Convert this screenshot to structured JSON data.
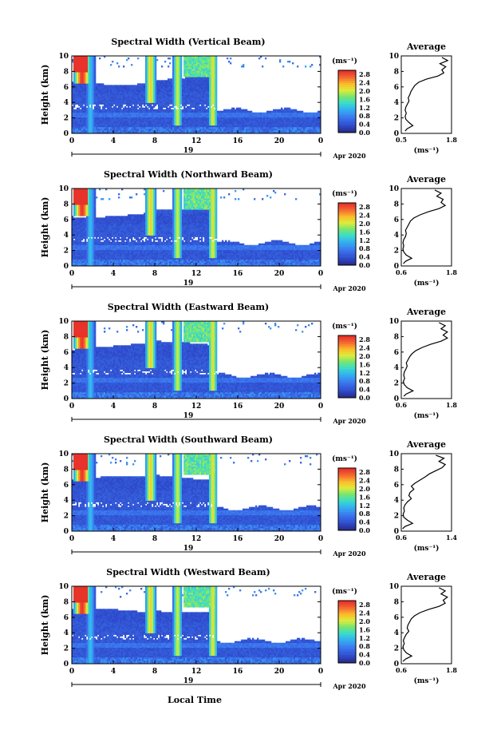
{
  "figure": {
    "xlabel": "Local Time",
    "month_label": "Apr 2020",
    "day_label": "19",
    "avg_title": "Average",
    "unit_label": "(ms⁻¹)",
    "ylabel": "Height (km)"
  },
  "chart_data": [
    {
      "type": "heatmap",
      "title": "Spectral Width (Vertical Beam)",
      "xlabel": "Local Time",
      "ylabel": "Height (km)",
      "x_ticks": [
        "0",
        "4",
        "8",
        "12",
        "16",
        "20",
        "0"
      ],
      "y_ticks": [
        "0",
        "2",
        "4",
        "6",
        "8",
        "10"
      ],
      "xlim": [
        0,
        24
      ],
      "ylim": [
        0,
        10
      ],
      "colorbar": {
        "unit": "(ms⁻¹)",
        "ticks": [
          "0.0",
          "0.4",
          "0.8",
          "1.2",
          "1.6",
          "2.0",
          "2.4",
          "2.8"
        ],
        "range": [
          0,
          3.0
        ]
      },
      "average_profile": {
        "title": "Average",
        "xlabel": "(ms⁻¹)",
        "xlim": [
          0.5,
          1.8
        ],
        "x_ticks": [
          "0.5",
          "1.8"
        ],
        "y_ticks": [
          "0",
          "2",
          "4",
          "6",
          "8",
          "10"
        ],
        "height": [
          0.3,
          0.6,
          1.0,
          1.4,
          1.8,
          2.2,
          2.6,
          3.0,
          3.4,
          3.8,
          4.2,
          4.6,
          5.0,
          5.4,
          5.8,
          6.2,
          6.6,
          7.0,
          7.4,
          7.8,
          8.2,
          8.6,
          9.0,
          9.4,
          9.8
        ],
        "width": [
          0.6,
          0.65,
          0.8,
          0.7,
          0.62,
          0.6,
          0.63,
          0.6,
          0.62,
          0.66,
          0.7,
          0.68,
          0.72,
          0.75,
          0.8,
          0.85,
          0.95,
          1.15,
          1.45,
          1.6,
          1.55,
          1.65,
          1.5,
          1.7,
          1.55
        ]
      }
    },
    {
      "type": "heatmap",
      "title": "Spectral Width (Northward Beam)",
      "xlabel": "Local Time",
      "ylabel": "Height (km)",
      "x_ticks": [
        "0",
        "4",
        "8",
        "12",
        "16",
        "20",
        "0"
      ],
      "y_ticks": [
        "0",
        "2",
        "4",
        "6",
        "8",
        "10"
      ],
      "xlim": [
        0,
        24
      ],
      "ylim": [
        0,
        10
      ],
      "colorbar": {
        "unit": "(ms⁻¹)",
        "ticks": [
          "0.0",
          "0.4",
          "0.8",
          "1.2",
          "1.6",
          "2.0",
          "2.4",
          "2.8"
        ],
        "range": [
          0,
          3.0
        ]
      },
      "average_profile": {
        "title": "Average",
        "xlabel": "(ms⁻¹)",
        "xlim": [
          0.6,
          1.8
        ],
        "x_ticks": [
          "0.6",
          "1.8"
        ],
        "y_ticks": [
          "0",
          "2",
          "4",
          "6",
          "8",
          "10"
        ],
        "height": [
          0.3,
          0.6,
          1.0,
          1.4,
          1.8,
          2.2,
          2.6,
          3.0,
          3.4,
          3.8,
          4.2,
          4.6,
          5.0,
          5.4,
          5.8,
          6.2,
          6.6,
          7.0,
          7.4,
          7.8,
          8.2,
          8.6,
          9.0,
          9.4,
          9.8
        ],
        "width": [
          0.65,
          0.7,
          0.85,
          0.72,
          0.66,
          0.64,
          0.66,
          0.64,
          0.66,
          0.7,
          0.72,
          0.7,
          0.74,
          0.78,
          0.82,
          0.9,
          1.05,
          1.25,
          1.5,
          1.65,
          1.55,
          1.6,
          1.45,
          1.55,
          1.4
        ]
      }
    },
    {
      "type": "heatmap",
      "title": "Spectral Width (Eastward Beam)",
      "xlabel": "Local Time",
      "ylabel": "Height (km)",
      "x_ticks": [
        "0",
        "4",
        "8",
        "12",
        "16",
        "20",
        "0"
      ],
      "y_ticks": [
        "0",
        "2",
        "4",
        "6",
        "8",
        "10"
      ],
      "xlim": [
        0,
        24
      ],
      "ylim": [
        0,
        10
      ],
      "colorbar": {
        "unit": "(ms⁻¹)",
        "ticks": [
          "0.0",
          "0.4",
          "0.8",
          "1.2",
          "1.6",
          "2.0",
          "2.4",
          "2.8"
        ],
        "range": [
          0,
          3.0
        ]
      },
      "average_profile": {
        "title": "Average",
        "xlabel": "(ms⁻¹)",
        "xlim": [
          0.6,
          1.8
        ],
        "x_ticks": [
          "0.6",
          "1.8"
        ],
        "y_ticks": [
          "0",
          "2",
          "4",
          "6",
          "8",
          "10"
        ],
        "height": [
          0.3,
          0.6,
          1.0,
          1.4,
          1.8,
          2.2,
          2.6,
          3.0,
          3.4,
          3.8,
          4.2,
          4.6,
          5.0,
          5.4,
          5.8,
          6.2,
          6.6,
          7.0,
          7.4,
          7.8,
          8.2,
          8.6,
          9.0,
          9.4,
          9.8
        ],
        "width": [
          0.66,
          0.72,
          0.88,
          0.74,
          0.67,
          0.65,
          0.68,
          0.66,
          0.67,
          0.71,
          0.74,
          0.72,
          0.76,
          0.8,
          0.86,
          0.95,
          1.1,
          1.3,
          1.55,
          1.7,
          1.6,
          1.7,
          1.55,
          1.65,
          1.5
        ]
      }
    },
    {
      "type": "heatmap",
      "title": "Spectral Width (Southward Beam)",
      "xlabel": "Local Time",
      "ylabel": "Height (km)",
      "x_ticks": [
        "0",
        "4",
        "8",
        "12",
        "16",
        "20",
        "0"
      ],
      "y_ticks": [
        "0",
        "2",
        "4",
        "6",
        "8",
        "10"
      ],
      "xlim": [
        0,
        24
      ],
      "ylim": [
        0,
        10
      ],
      "colorbar": {
        "unit": "(ms⁻¹)",
        "ticks": [
          "0.0",
          "0.4",
          "0.8",
          "1.2",
          "1.6",
          "2.0",
          "2.4",
          "2.8"
        ],
        "range": [
          0,
          3.0
        ]
      },
      "average_profile": {
        "title": "Average",
        "xlabel": "(ms⁻¹)",
        "xlim": [
          0.6,
          1.4
        ],
        "x_ticks": [
          "0.6",
          "1.4"
        ],
        "y_ticks": [
          "0",
          "2",
          "4",
          "6",
          "8",
          "10"
        ],
        "height": [
          0.3,
          0.6,
          1.0,
          1.4,
          1.8,
          2.2,
          2.6,
          3.0,
          3.4,
          3.8,
          4.2,
          4.6,
          5.0,
          5.4,
          5.8,
          6.2,
          6.6,
          7.0,
          7.4,
          7.8,
          8.2,
          8.6,
          9.0,
          9.4,
          9.8
        ],
        "width": [
          0.62,
          0.66,
          0.78,
          0.7,
          0.64,
          0.63,
          0.65,
          0.64,
          0.66,
          0.7,
          0.76,
          0.72,
          0.74,
          0.8,
          0.76,
          0.82,
          0.9,
          0.98,
          1.05,
          1.15,
          1.25,
          1.3,
          1.2,
          1.28,
          1.15
        ]
      }
    },
    {
      "type": "heatmap",
      "title": "Spectral Width (Westward Beam)",
      "xlabel": "Local Time",
      "ylabel": "Height (km)",
      "x_ticks": [
        "0",
        "4",
        "8",
        "12",
        "16",
        "20",
        "0"
      ],
      "y_ticks": [
        "0",
        "2",
        "4",
        "6",
        "8",
        "10"
      ],
      "xlim": [
        0,
        24
      ],
      "ylim": [
        0,
        10
      ],
      "colorbar": {
        "unit": "(ms⁻¹)",
        "ticks": [
          "0.0",
          "0.4",
          "0.8",
          "1.2",
          "1.6",
          "2.0",
          "2.4",
          "2.8"
        ],
        "range": [
          0,
          3.0
        ]
      },
      "average_profile": {
        "title": "Average",
        "xlabel": "(ms⁻¹)",
        "xlim": [
          0.6,
          1.8
        ],
        "x_ticks": [
          "0.6",
          "1.8"
        ],
        "y_ticks": [
          "0",
          "2",
          "4",
          "6",
          "8",
          "10"
        ],
        "height": [
          0.3,
          0.6,
          1.0,
          1.4,
          1.8,
          2.2,
          2.6,
          3.0,
          3.4,
          3.8,
          4.2,
          4.6,
          5.0,
          5.4,
          5.8,
          6.2,
          6.6,
          7.0,
          7.4,
          7.8,
          8.2,
          8.6,
          9.0,
          9.4,
          9.8
        ],
        "width": [
          0.64,
          0.7,
          0.85,
          0.72,
          0.66,
          0.64,
          0.67,
          0.65,
          0.68,
          0.72,
          0.78,
          0.74,
          0.76,
          0.8,
          0.84,
          0.92,
          1.05,
          1.25,
          1.5,
          1.65,
          1.6,
          1.7,
          1.55,
          1.65,
          1.5
        ]
      }
    }
  ]
}
